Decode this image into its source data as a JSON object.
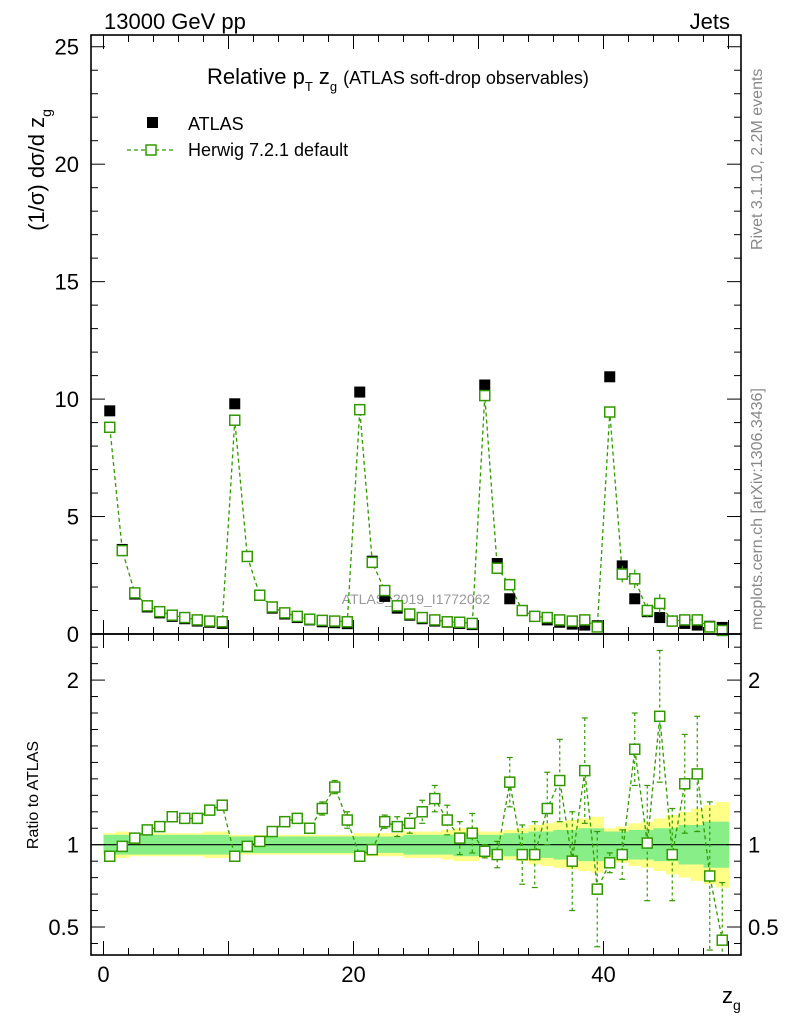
{
  "header": {
    "left": "13000 GeV pp",
    "right": "Jets"
  },
  "side_texts": {
    "rivet": "Rivet 3.1.10,  2.2M events",
    "mcplots": "mcplots.cern.ch [arXiv:1306.3436]"
  },
  "chart_data": [
    {
      "type": "scatter",
      "title": "Relative p_T z_g (ATLAS soft-drop observables)",
      "title_main": "Relative p",
      "title_sub_T": "T",
      "title_z": " z",
      "title_sub_g": "g",
      "title_tail": "(ATLAS soft-drop observables)",
      "ylabel": "(1/σ) dσ/d z",
      "ylabel_sub": "g",
      "watermark": "ATLAS_2019_I1772062",
      "xlim": [
        -1,
        51
      ],
      "ylim": [
        0,
        25.5
      ],
      "yticks": [
        0,
        5,
        10,
        15,
        20,
        25
      ],
      "ytick_labels": [
        "0",
        "5",
        "10",
        "15",
        "20",
        "25"
      ],
      "legend": [
        {
          "label": "ATLAS",
          "color": "#000000",
          "marker": "filled-square"
        },
        {
          "label": "Herwig 7.2.1 default",
          "color": "#339900",
          "marker": "open-square-dashed"
        }
      ],
      "series": [
        {
          "name": "ATLAS",
          "color": "#000000",
          "x": [
            0.5,
            1.5,
            2.5,
            3.5,
            4.5,
            5.5,
            6.5,
            7.5,
            8.5,
            9.5,
            10.5,
            11.5,
            12.5,
            13.5,
            14.5,
            15.5,
            16.5,
            17.5,
            18.5,
            19.5,
            20.5,
            21.5,
            22.5,
            23.5,
            24.5,
            25.5,
            26.5,
            27.5,
            28.5,
            29.5,
            30.5,
            31.5,
            32.5,
            33.5,
            34.5,
            35.5,
            36.5,
            37.5,
            38.5,
            39.5,
            40.5,
            41.5,
            42.5,
            43.5,
            44.5,
            45.5,
            46.5,
            47.5,
            48.5,
            49.5
          ],
          "values": [
            9.5,
            3.6,
            1.7,
            1.15,
            0.9,
            0.75,
            0.65,
            0.55,
            0.5,
            0.45,
            9.8,
            3.3,
            1.65,
            1.1,
            0.85,
            0.7,
            0.6,
            0.52,
            0.48,
            0.44,
            10.3,
            3.1,
            1.6,
            1.1,
            0.8,
            0.65,
            0.55,
            0.5,
            0.45,
            0.4,
            10.6,
            3.0,
            1.5,
            1.0,
            0.75,
            0.6,
            0.5,
            0.42,
            0.38,
            0.35,
            10.95,
            2.9,
            1.5,
            0.95,
            0.7,
            0.55,
            0.45,
            0.38,
            0.33,
            0.28
          ]
        },
        {
          "name": "Herwig 7.2.1 default",
          "color": "#339900",
          "x": [
            0.5,
            1.5,
            2.5,
            3.5,
            4.5,
            5.5,
            6.5,
            7.5,
            8.5,
            9.5,
            10.5,
            11.5,
            12.5,
            13.5,
            14.5,
            15.5,
            16.5,
            17.5,
            18.5,
            19.5,
            20.5,
            21.5,
            22.5,
            23.5,
            24.5,
            25.5,
            26.5,
            27.5,
            28.5,
            29.5,
            30.5,
            31.5,
            32.5,
            33.5,
            34.5,
            35.5,
            36.5,
            37.5,
            38.5,
            39.5,
            40.5,
            41.5,
            42.5,
            43.5,
            44.5,
            45.5,
            46.5,
            47.5,
            48.5,
            49.5
          ],
          "values": [
            8.8,
            3.55,
            1.75,
            1.2,
            0.95,
            0.8,
            0.7,
            0.6,
            0.55,
            0.52,
            9.1,
            3.3,
            1.65,
            1.15,
            0.9,
            0.75,
            0.63,
            0.58,
            0.55,
            0.52,
            9.55,
            3.05,
            1.85,
            1.2,
            0.85,
            0.7,
            0.6,
            0.52,
            0.5,
            0.45,
            10.15,
            2.8,
            2.1,
            1.0,
            0.75,
            0.7,
            0.6,
            0.55,
            0.6,
            0.3,
            9.45,
            2.55,
            2.35,
            1.0,
            1.3,
            0.55,
            0.6,
            0.6,
            0.3,
            0.15
          ],
          "err": [
            0.1,
            0.08,
            0.05,
            0.04,
            0.04,
            0.04,
            0.04,
            0.04,
            0.04,
            0.04,
            0.1,
            0.08,
            0.05,
            0.05,
            0.04,
            0.04,
            0.04,
            0.04,
            0.04,
            0.04,
            0.12,
            0.1,
            0.08,
            0.06,
            0.05,
            0.05,
            0.05,
            0.05,
            0.05,
            0.05,
            0.15,
            0.2,
            0.25,
            0.15,
            0.1,
            0.1,
            0.1,
            0.1,
            0.15,
            0.1,
            0.2,
            0.35,
            0.4,
            0.3,
            0.4,
            0.25,
            0.2,
            0.2,
            0.15,
            0.1
          ]
        }
      ]
    },
    {
      "type": "scatter",
      "title": "Ratio to ATLAS",
      "ylabel": "Ratio to ATLAS",
      "xlabel": "z",
      "xlabel_sub": "g",
      "xlim": [
        -1,
        51
      ],
      "ylim": [
        0.33,
        2.28
      ],
      "yticks": [
        0.5,
        1,
        2
      ],
      "ytick_labels": [
        "0.5",
        "1",
        "2"
      ],
      "xticks": [
        0,
        20,
        40
      ],
      "xtick_labels": [
        "0",
        "20",
        "40"
      ],
      "band_inner": [
        0.06,
        0.06,
        0.06,
        0.06,
        0.06,
        0.06,
        0.06,
        0.06,
        0.06,
        0.06,
        0.05,
        0.05,
        0.05,
        0.05,
        0.05,
        0.05,
        0.05,
        0.05,
        0.05,
        0.05,
        0.05,
        0.05,
        0.05,
        0.05,
        0.06,
        0.06,
        0.06,
        0.06,
        0.07,
        0.07,
        0.06,
        0.06,
        0.07,
        0.07,
        0.08,
        0.08,
        0.09,
        0.09,
        0.1,
        0.1,
        0.08,
        0.08,
        0.09,
        0.09,
        0.1,
        0.1,
        0.12,
        0.12,
        0.14,
        0.14
      ],
      "band_outer": [
        0.07,
        0.08,
        0.07,
        0.07,
        0.07,
        0.07,
        0.07,
        0.07,
        0.08,
        0.08,
        0.06,
        0.06,
        0.06,
        0.06,
        0.06,
        0.06,
        0.06,
        0.06,
        0.06,
        0.06,
        0.07,
        0.07,
        0.07,
        0.07,
        0.08,
        0.08,
        0.08,
        0.09,
        0.1,
        0.1,
        0.08,
        0.08,
        0.09,
        0.1,
        0.12,
        0.13,
        0.14,
        0.15,
        0.16,
        0.17,
        0.1,
        0.11,
        0.13,
        0.14,
        0.16,
        0.18,
        0.2,
        0.22,
        0.24,
        0.26
      ],
      "series": [
        {
          "name": "Herwig 7.2.1 default / ATLAS",
          "color": "#339900",
          "x": [
            0.5,
            1.5,
            2.5,
            3.5,
            4.5,
            5.5,
            6.5,
            7.5,
            8.5,
            9.5,
            10.5,
            11.5,
            12.5,
            13.5,
            14.5,
            15.5,
            16.5,
            17.5,
            18.5,
            19.5,
            20.5,
            21.5,
            22.5,
            23.5,
            24.5,
            25.5,
            26.5,
            27.5,
            28.5,
            29.5,
            30.5,
            31.5,
            32.5,
            33.5,
            34.5,
            35.5,
            36.5,
            37.5,
            38.5,
            39.5,
            40.5,
            41.5,
            42.5,
            43.5,
            44.5,
            45.5,
            46.5,
            47.5,
            48.5,
            49.5
          ],
          "values": [
            0.93,
            0.99,
            1.04,
            1.09,
            1.11,
            1.17,
            1.16,
            1.16,
            1.21,
            1.24,
            0.93,
            0.99,
            1.02,
            1.08,
            1.14,
            1.16,
            1.1,
            1.22,
            1.35,
            1.15,
            0.93,
            0.97,
            1.14,
            1.11,
            1.13,
            1.2,
            1.28,
            1.15,
            1.04,
            1.07,
            0.96,
            0.94,
            1.38,
            0.94,
            0.94,
            1.22,
            1.39,
            0.9,
            1.45,
            0.73,
            0.89,
            0.94,
            1.58,
            1.01,
            1.78,
            0.94,
            1.37,
            1.43,
            0.81,
            0.42
          ],
          "err": [
            0.01,
            0.01,
            0.01,
            0.01,
            0.01,
            0.02,
            0.02,
            0.02,
            0.02,
            0.03,
            0.01,
            0.01,
            0.02,
            0.02,
            0.03,
            0.03,
            0.03,
            0.04,
            0.04,
            0.05,
            0.02,
            0.03,
            0.04,
            0.06,
            0.06,
            0.07,
            0.08,
            0.09,
            0.1,
            0.12,
            0.04,
            0.08,
            0.15,
            0.18,
            0.2,
            0.22,
            0.25,
            0.3,
            0.32,
            0.35,
            0.06,
            0.15,
            0.22,
            0.35,
            0.4,
            0.28,
            0.3,
            0.35,
            0.45,
            0.35
          ]
        }
      ]
    }
  ]
}
